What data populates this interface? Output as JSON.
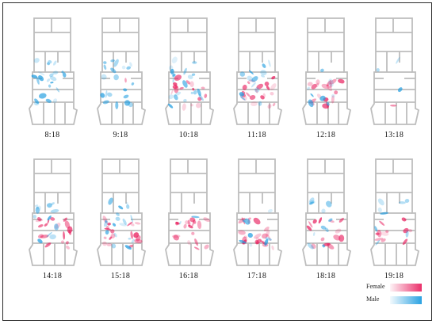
{
  "panels": [
    {
      "time": "8:18",
      "female": 0.0,
      "male": 1.0
    },
    {
      "time": "9:18",
      "female": 0.05,
      "male": 0.9
    },
    {
      "time": "10:18",
      "female": 0.7,
      "male": 0.9
    },
    {
      "time": "11:18",
      "female": 0.9,
      "male": 0.6
    },
    {
      "time": "12:18",
      "female": 0.85,
      "male": 0.35
    },
    {
      "time": "13:18",
      "female": 0.05,
      "male": 0.15
    },
    {
      "time": "14:18",
      "female": 0.85,
      "male": 0.6
    },
    {
      "time": "15:18",
      "female": 0.8,
      "male": 0.8
    },
    {
      "time": "16:18",
      "female": 0.8,
      "male": 0.1
    },
    {
      "time": "17:18",
      "female": 0.9,
      "male": 0.35
    },
    {
      "time": "18:18",
      "female": 0.6,
      "male": 0.5
    },
    {
      "time": "19:18",
      "female": 0.5,
      "male": 0.35
    }
  ],
  "legend": {
    "female_label": "Female",
    "male_label": "Male"
  },
  "colors": {
    "female": "#e8195a",
    "male": "#1f9de0",
    "plan": "#bdbdbd",
    "frame": "#2b2b2b"
  }
}
